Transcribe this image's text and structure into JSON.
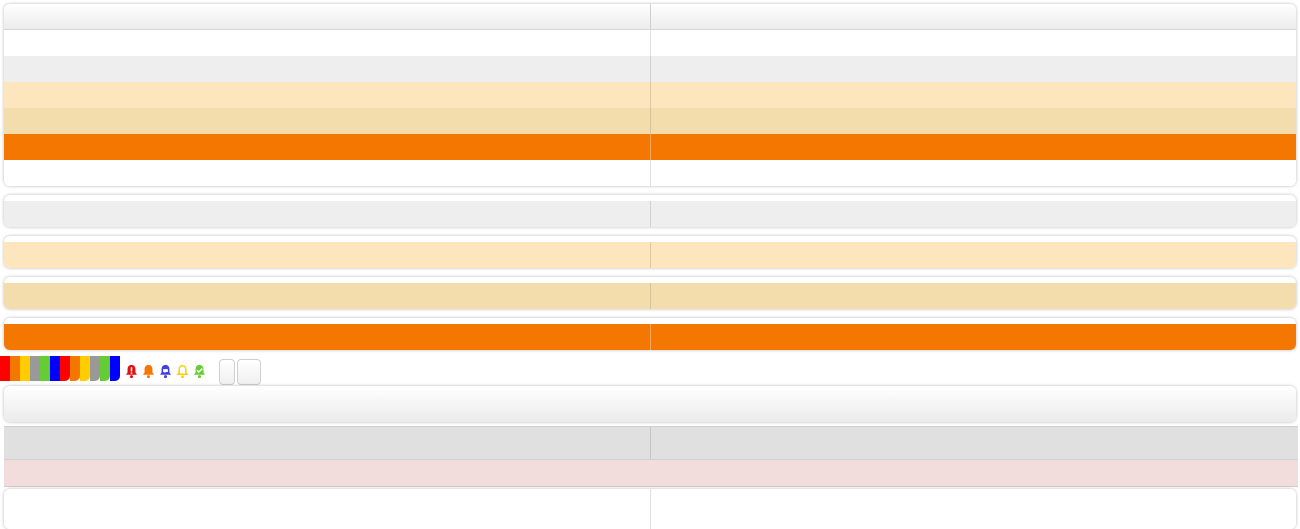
{
  "main_table": {
    "header": [
      "",
      ""
    ],
    "rows": [
      {
        "style": "white",
        "cells": [
          "",
          ""
        ]
      },
      {
        "style": "grey",
        "cells": [
          "",
          ""
        ]
      },
      {
        "style": "cream",
        "cells": [
          "",
          ""
        ]
      },
      {
        "style": "sand",
        "cells": [
          "",
          ""
        ]
      },
      {
        "style": "orange",
        "cells": [
          "",
          ""
        ]
      },
      {
        "style": "white",
        "cells": [
          "",
          ""
        ]
      }
    ]
  },
  "row_samples": [
    {
      "style": "grey",
      "cells": [
        "",
        ""
      ]
    },
    {
      "style": "cream",
      "cells": [
        "",
        ""
      ]
    },
    {
      "style": "sand",
      "cells": [
        "",
        ""
      ]
    },
    {
      "style": "orange",
      "cells": [
        "",
        ""
      ]
    }
  ],
  "colors": {
    "row_white": "#ffffff",
    "row_grey": "#eeeeee",
    "row_cream": "#fde5bd",
    "row_sand": "#f4ddad",
    "row_orange": "#f47702",
    "row_light_grey": "#e0e0e0",
    "row_pink": "#f2dcdc",
    "swatches": [
      "#ff0000",
      "#f47702",
      "#ffcc00",
      "#999999",
      "#66cc33",
      "#0000ff"
    ],
    "swatch_tabs": [
      "#ff0000",
      "#f47702",
      "#ffcc00",
      "#999999",
      "#66cc33",
      "#0000ff"
    ]
  },
  "status_icons": [
    {
      "name": "alert-bell-icon",
      "color": "#e01010"
    },
    {
      "name": "bell-icon",
      "color": "#f47702"
    },
    {
      "name": "message-bell-icon",
      "color": "#4040dd"
    },
    {
      "name": "bell-outline-icon",
      "color": "#ffcc00"
    },
    {
      "name": "check-bell-icon",
      "color": "#66cc33"
    }
  ],
  "toolbar": {
    "button_1_label": "",
    "button_2_label": ""
  },
  "section_bar": {
    "title": ""
  },
  "lower_table": {
    "rows": [
      {
        "style": "light-grey",
        "cells": [
          "",
          ""
        ]
      },
      {
        "style": "pink",
        "cells": [
          ""
        ]
      }
    ]
  },
  "bottom_panel": {
    "cells": [
      "",
      ""
    ]
  }
}
